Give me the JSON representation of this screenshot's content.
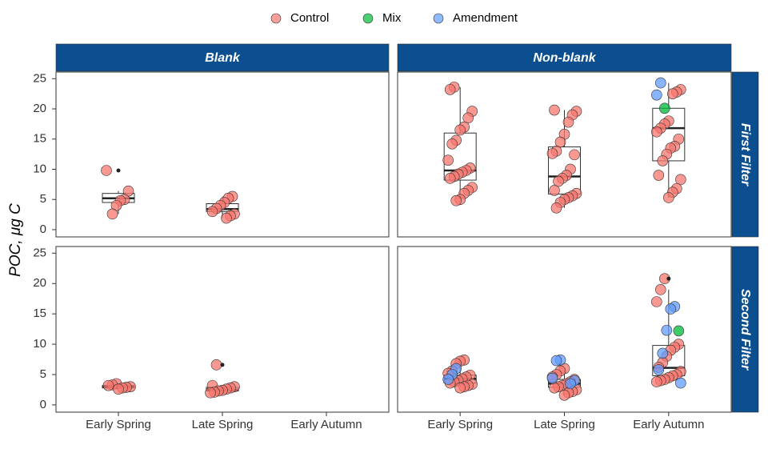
{
  "chart_data": {
    "type": "box",
    "y_label": "POC, μg C",
    "series": [
      {
        "name": "Control",
        "color": "#F8766D"
      },
      {
        "name": "Mix",
        "color": "#00BA38"
      },
      {
        "name": "Amendment",
        "color": "#619CFF"
      }
    ],
    "categories": [
      "Early Spring",
      "Late Spring",
      "Early Autumn"
    ],
    "columns": [
      "Blank",
      "Non-blank"
    ],
    "rows": [
      "First Filter",
      "Second Filter"
    ],
    "ylim": [
      -1.2,
      26.1
    ],
    "yticks": [
      0,
      5,
      10,
      15,
      20,
      25
    ],
    "panels": [
      [
        {
          "boxes": [
            {
              "low": 2.6,
              "q1": 4.5,
              "median": 5.2,
              "q3": 6.0,
              "high": 6.4,
              "outliers": [
                9.8
              ]
            },
            {
              "low": 1.9,
              "q1": 3.0,
              "median": 3.4,
              "q3": 4.3,
              "high": 5.5,
              "outliers": []
            },
            null
          ],
          "points": [
            [
              [
                9.8,
                6.4,
                5.0,
                4.8,
                4.0,
                2.6
              ],
              [],
              []
            ],
            [
              [
                5.5,
                5.2,
                4.5,
                4.0,
                3.5,
                3.0,
                2.6,
                2.3,
                1.9
              ],
              [],
              []
            ],
            [
              [],
              [],
              []
            ]
          ]
        },
        {
          "boxes": [
            {
              "low": 4.8,
              "q1": 8.2,
              "median": 9.8,
              "q3": 16.0,
              "high": 23.6,
              "outliers": []
            },
            {
              "low": 3.6,
              "q1": 5.9,
              "median": 8.8,
              "q3": 13.7,
              "high": 19.8,
              "outliers": []
            },
            {
              "low": 5.3,
              "q1": 11.4,
              "median": 16.8,
              "q3": 20.1,
              "high": 24.3,
              "outliers": []
            }
          ],
          "points": [
            [
              [
                23.6,
                23.2,
                19.6,
                18.5,
                17.0,
                16.5,
                14.8,
                14.2,
                11.5,
                10.2,
                9.8,
                9.5,
                9.2,
                8.8,
                8.5,
                7.0,
                6.5,
                6.0,
                5.0,
                4.8
              ],
              [],
              []
            ],
            [
              [
                19.8,
                19.6,
                19.0,
                17.8,
                15.8,
                14.5,
                13.0,
                12.6,
                12.4,
                10.0,
                9.0,
                8.5,
                8.0,
                6.5,
                6.0,
                5.6,
                5.3,
                5.0,
                4.5,
                3.6
              ],
              [],
              []
            ],
            [
              [
                23.2,
                22.8,
                22.5,
                18.0,
                17.5,
                16.8,
                16.2,
                15.0,
                13.8,
                13.5,
                12.5,
                11.4,
                9.0,
                8.3,
                6.8,
                6.2,
                5.3
              ],
              [
                20.1
              ],
              [
                24.3,
                22.3
              ]
            ]
          ]
        }
      ],
      [
        {
          "boxes": [
            {
              "low": 2.6,
              "q1": 2.8,
              "median": 3.0,
              "q3": 3.2,
              "high": 3.5,
              "outliers": []
            },
            {
              "low": 2.0,
              "q1": 2.3,
              "median": 2.5,
              "q3": 2.9,
              "high": 3.2,
              "outliers": [
                6.6
              ]
            },
            null
          ],
          "points": [
            [
              [
                3.5,
                3.3,
                3.2,
                3.0,
                2.9,
                2.8,
                2.6
              ],
              [],
              []
            ],
            [
              [
                6.6,
                3.2,
                3.0,
                2.8,
                2.6,
                2.4,
                2.3,
                2.1,
                2.0
              ],
              [],
              []
            ],
            [
              [],
              [],
              []
            ]
          ]
        },
        {
          "boxes": [
            {
              "low": 2.8,
              "q1": 3.6,
              "median": 4.3,
              "q3": 4.9,
              "high": 7.4,
              "outliers": []
            },
            {
              "low": 1.6,
              "q1": 2.9,
              "median": 3.5,
              "q3": 4.2,
              "high": 6.0,
              "outliers": []
            },
            {
              "low": 3.8,
              "q1": 4.8,
              "median": 6.1,
              "q3": 9.8,
              "high": 19.0,
              "outliers": [
                20.8
              ]
            }
          ],
          "points": [
            [
              [
                7.4,
                7.2,
                6.8,
                5.6,
                5.2,
                4.9,
                4.6,
                4.3,
                4.0,
                3.8,
                3.6,
                3.4,
                3.2,
                3.0,
                2.8
              ],
              [],
              [
                6.0,
                5.0,
                4.2
              ]
            ],
            [
              [
                6.0,
                5.6,
                5.0,
                4.6,
                4.2,
                3.8,
                3.5,
                3.2,
                3.0,
                2.8,
                2.5,
                2.2,
                2.0,
                1.6
              ],
              [],
              [
                7.4,
                7.3,
                4.4,
                4.0,
                3.5
              ]
            ],
            [
              [
                20.8,
                19.0,
                17.0,
                10.0,
                9.5,
                9.0,
                8.0,
                7.0,
                6.2,
                5.5,
                5.0,
                4.8,
                4.5,
                4.2,
                4.0,
                3.8
              ],
              [
                12.2
              ],
              [
                16.2,
                15.8,
                12.3,
                8.5,
                5.8,
                3.6
              ]
            ]
          ]
        }
      ]
    ]
  }
}
